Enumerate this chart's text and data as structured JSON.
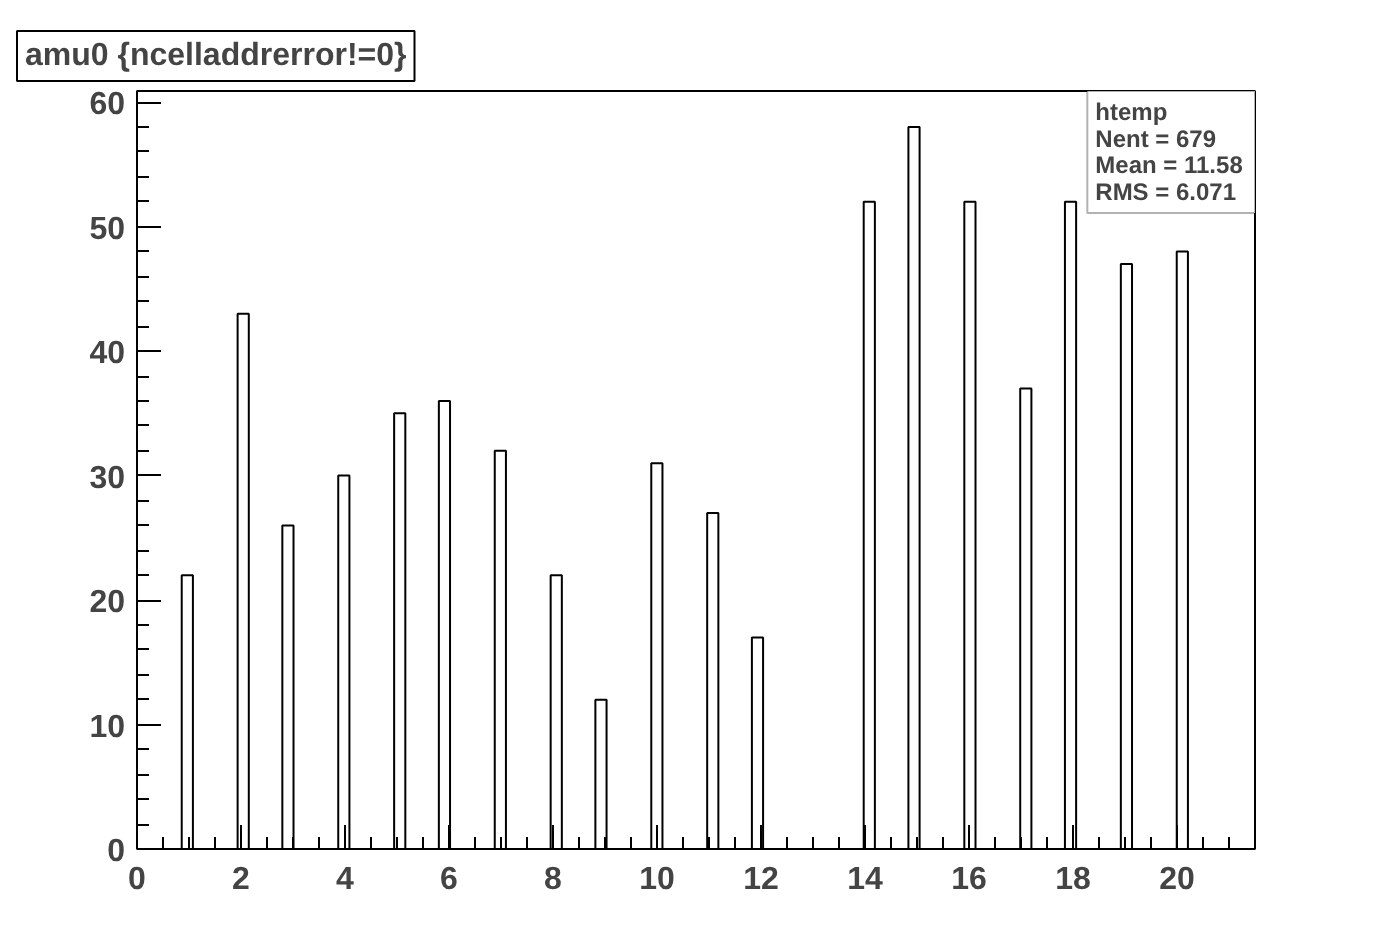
{
  "chart_data": {
    "type": "histogram",
    "title": "amu0 {ncelladdrerror!=0}",
    "bins": [
      0.86,
      1.075,
      1.935,
      2.15,
      2.795,
      3.01,
      3.87,
      4.085,
      4.945,
      5.16,
      5.805,
      6.02,
      6.88,
      7.095,
      7.955,
      8.17,
      8.815,
      9.03,
      9.89,
      10.105,
      10.965,
      11.18,
      11.825,
      12.04,
      13.975,
      14.19,
      14.835,
      15.05,
      15.91,
      16.125,
      16.985,
      17.2,
      17.845,
      18.06,
      18.92,
      19.135,
      19.995,
      20.21
    ],
    "values": [
      22,
      0,
      43,
      0,
      26,
      0,
      30,
      0,
      35,
      0,
      36,
      0,
      32,
      0,
      22,
      0,
      12,
      0,
      31,
      0,
      27,
      0,
      17,
      0,
      52,
      0,
      58,
      0,
      52,
      0,
      37,
      0,
      52,
      0,
      47,
      0,
      48
    ],
    "color": "#ffffff",
    "xlim": [
      0,
      21.5
    ],
    "xticks": [
      0,
      2,
      4,
      6,
      8,
      10,
      12,
      14,
      16,
      18,
      20
    ],
    "ylim": [
      0,
      60.9
    ],
    "yticks": [
      0,
      10,
      20,
      30,
      40,
      50,
      60
    ],
    "grid": false,
    "annotations": [
      "htemp",
      "Nent = 679",
      "Mean  =  11.58",
      "RMS   =  6.071"
    ]
  }
}
